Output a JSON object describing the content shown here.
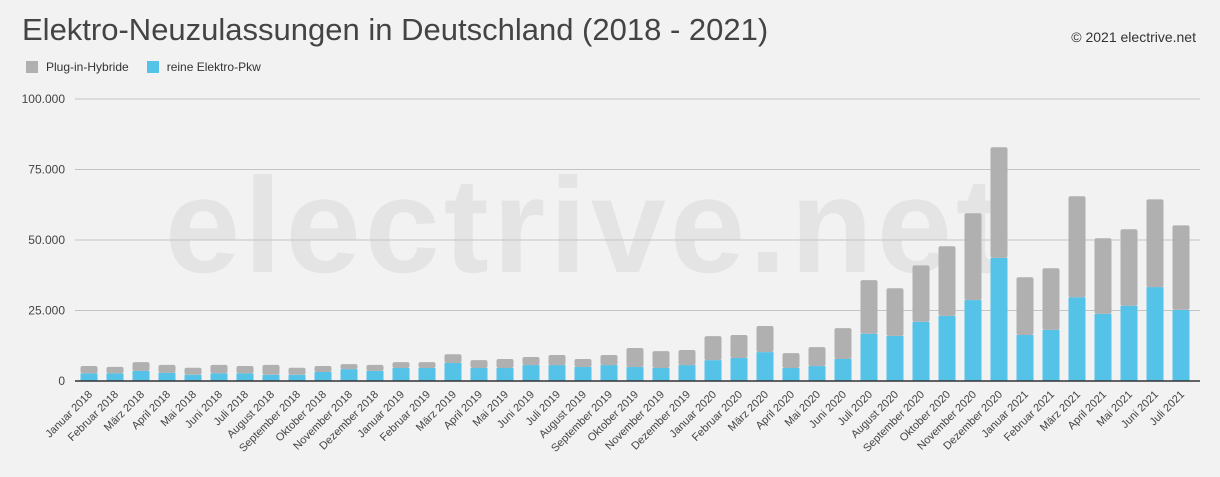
{
  "chart_data": {
    "type": "bar",
    "stacked": true,
    "title": "Elektro-Neuzulassungen in Deutschland (2018 - 2021)",
    "credit": "© 2021 electrive.net",
    "watermark": "electrive.net",
    "ylim": [
      0,
      100000
    ],
    "yticks": [
      "0",
      "25.000",
      "50.000",
      "75.000",
      "100.000"
    ],
    "ytick_values": [
      0,
      25000,
      50000,
      75000,
      100000
    ],
    "grid": true,
    "legend_position": "top-left",
    "categories": [
      "Januar 2018",
      "Februar 2018",
      "März 2018",
      "April 2018",
      "Mai 2018",
      "Juni 2018",
      "Juli 2018",
      "August 2018",
      "September 2018",
      "Oktober 2018",
      "November 2018",
      "Dezember 2018",
      "Januar 2019",
      "Februar 2019",
      "März 2019",
      "April 2019",
      "Mai 2019",
      "Juni 2019",
      "Juli 2019",
      "August 2019",
      "September 2019",
      "Oktober 2019",
      "November 2019",
      "Dezember 2019",
      "Januar 2020",
      "Februar 2020",
      "März 2020",
      "April 2020",
      "Mai 2020",
      "Juni 2020",
      "Juli 2020",
      "August 2020",
      "September 2020",
      "Oktober 2020",
      "November 2020",
      "Dezember 2020",
      "Januar 2021",
      "Februar 2021",
      "März 2021",
      "April 2021",
      "Mai 2021",
      "Juni 2021",
      "Juli 2021"
    ],
    "series": [
      {
        "name": "reine Elektro-Pkw",
        "color": "#55c2e8",
        "values": [
          2700,
          2700,
          3600,
          2900,
          2200,
          2700,
          2700,
          2200,
          2200,
          3200,
          4200,
          3600,
          4600,
          4600,
          6400,
          4600,
          4600,
          5650,
          5650,
          4950,
          5650,
          4950,
          4600,
          5650,
          7400,
          8150,
          10250,
          4600,
          5300,
          7800,
          16750,
          16000,
          21000,
          23100,
          28700,
          43650,
          16300,
          18150,
          29700,
          23800,
          26700,
          33300,
          25200
        ]
      },
      {
        "name": "Plug-in-Hybride",
        "color": "#b0b0b0",
        "values": [
          2600,
          2300,
          3100,
          2800,
          2500,
          3000,
          2600,
          3500,
          2500,
          2100,
          1800,
          2100,
          2100,
          2100,
          3100,
          2800,
          3200,
          2850,
          3550,
          2850,
          3550,
          6750,
          6000,
          5350,
          8500,
          8150,
          9250,
          5300,
          6700,
          10950,
          19000,
          16900,
          20000,
          24700,
          30800,
          39250,
          20500,
          21850,
          35800,
          26800,
          27100,
          31100,
          30000
        ]
      }
    ]
  }
}
